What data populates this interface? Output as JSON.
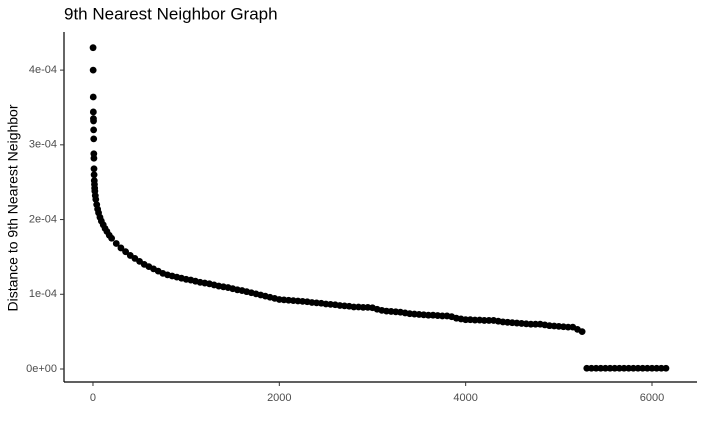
{
  "chart_data": {
    "type": "scatter",
    "title": "9th Nearest Neighbor Graph",
    "y_label": "Distance to 9th Nearest Neighbor",
    "color": "#000000",
    "xlim": [
      -311,
      6483
    ],
    "ylim": [
      -1.74e-05,
      0.000451
    ],
    "xticks": [
      0,
      2000,
      4000,
      6000
    ],
    "yticks": [
      {
        "value": 0,
        "label": "0e+00"
      },
      {
        "value": 0.0001,
        "label": "1e-04"
      },
      {
        "value": 0.0002,
        "label": "2e-04"
      },
      {
        "value": 0.0003,
        "label": "3e-04"
      },
      {
        "value": 0.0004,
        "label": "4e-04"
      }
    ],
    "x": [
      1,
      2,
      3,
      4,
      5,
      6,
      7,
      8,
      9,
      10,
      11,
      12,
      14,
      16,
      18,
      20,
      25,
      30,
      40,
      50,
      60,
      75,
      90,
      110,
      130,
      150,
      175,
      200,
      250,
      300,
      350,
      400,
      450,
      500,
      550,
      600,
      650,
      700,
      750,
      800,
      850,
      900,
      950,
      1000,
      1050,
      1100,
      1150,
      1200,
      1250,
      1300,
      1350,
      1400,
      1450,
      1500,
      1550,
      1600,
      1650,
      1700,
      1750,
      1800,
      1850,
      1900,
      1950,
      2000,
      2050,
      2100,
      2150,
      2200,
      2250,
      2300,
      2350,
      2400,
      2450,
      2500,
      2550,
      2600,
      2650,
      2700,
      2750,
      2800,
      2850,
      2900,
      2950,
      3000,
      3050,
      3100,
      3150,
      3200,
      3250,
      3300,
      3350,
      3400,
      3450,
      3500,
      3550,
      3600,
      3650,
      3700,
      3750,
      3800,
      3850,
      3900,
      3950,
      4000,
      4050,
      4100,
      4150,
      4200,
      4250,
      4300,
      4350,
      4400,
      4450,
      4500,
      4550,
      4600,
      4650,
      4700,
      4750,
      4800,
      4850,
      4900,
      4950,
      5000,
      5050,
      5100,
      5150,
      5200,
      5250,
      5300,
      5350,
      5400,
      5450,
      5500,
      5550,
      5600,
      5650,
      5700,
      5750,
      5800,
      5850,
      5900,
      5950,
      6000,
      6050,
      6100,
      6150
    ],
    "values": [
      0.00043,
      0.0004,
      0.000364,
      0.000344,
      0.000335,
      0.000332,
      0.00032,
      0.000308,
      0.000288,
      0.000282,
      0.000268,
      0.00026,
      0.000252,
      0.000247,
      0.000242,
      0.000238,
      0.000232,
      0.000227,
      0.00022,
      0.000214,
      0.000209,
      0.000203,
      0.000198,
      0.000193,
      0.000188,
      0.000184,
      0.000179,
      0.000175,
      0.000168,
      0.000162,
      0.000157,
      0.000152,
      0.000148,
      0.000144,
      0.00014,
      0.000137,
      0.000134,
      0.000131,
      0.000128,
      0.000126,
      0.0001245,
      0.000123,
      0.0001215,
      0.00012,
      0.000119,
      0.0001175,
      0.000116,
      0.000115,
      0.000114,
      0.0001125,
      0.000111,
      0.00011,
      0.000109,
      0.0001075,
      0.000106,
      0.000105,
      0.0001035,
      0.000102,
      0.0001005,
      9.9e-05,
      9.75e-05,
      9.6e-05,
      9.45e-05,
      9.3e-05,
      9.25e-05,
      9.2e-05,
      9.15e-05,
      9.1e-05,
      9.05e-05,
      9e-05,
      8.9e-05,
      8.85e-05,
      8.8e-05,
      8.7e-05,
      8.65e-05,
      8.6e-05,
      8.5e-05,
      8.45e-05,
      8.4e-05,
      8.3e-05,
      8.3e-05,
      8.25e-05,
      8.25e-05,
      8.2e-05,
      8e-05,
      7.85e-05,
      7.75e-05,
      7.7e-05,
      7.65e-05,
      7.6e-05,
      7.5e-05,
      7.4e-05,
      7.35e-05,
      7.3e-05,
      7.25e-05,
      7.2e-05,
      7.2e-05,
      7.15e-05,
      7.1e-05,
      7.1e-05,
      7e-05,
      6.8e-05,
      6.7e-05,
      6.6e-05,
      6.6e-05,
      6.55e-05,
      6.55e-05,
      6.5e-05,
      6.5e-05,
      6.5e-05,
      6.4e-05,
      6.3e-05,
      6.25e-05,
      6.2e-05,
      6.15e-05,
      6.1e-05,
      6.05e-05,
      6e-05,
      6e-05,
      6e-05,
      5.9e-05,
      5.8e-05,
      5.75e-05,
      5.7e-05,
      5.65e-05,
      5.6e-05,
      5.6e-05,
      5.3e-05,
      5e-05,
      1e-06,
      1e-06,
      1e-06,
      1e-06,
      1e-06,
      1e-06,
      1e-06,
      1e-06,
      1e-06,
      1e-06,
      1e-06,
      1e-06,
      1e-06,
      1e-06,
      1e-06,
      1e-06,
      1e-06,
      1e-06
    ]
  }
}
